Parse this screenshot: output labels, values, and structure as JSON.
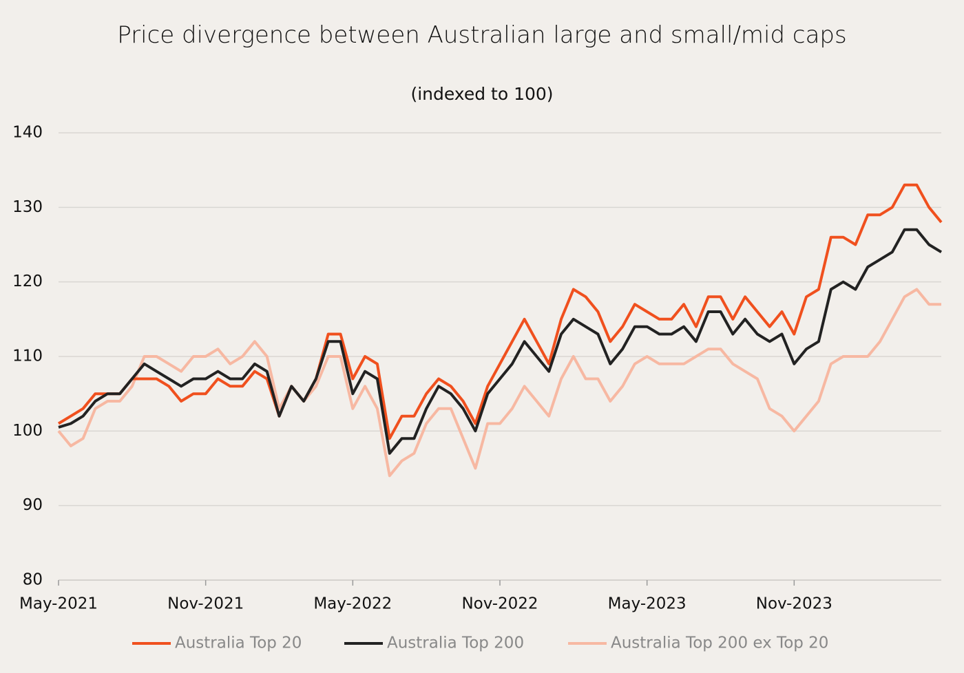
{
  "chart_data": {
    "type": "line",
    "title": "Price divergence between Australian large and small/mid caps",
    "subtitle": "(indexed to 100)",
    "categories": [
      "May-2021",
      null,
      null,
      null,
      null,
      null,
      null,
      null,
      null,
      null,
      null,
      null,
      "Nov-2021",
      null,
      null,
      null,
      null,
      null,
      null,
      null,
      null,
      null,
      null,
      null,
      "May-2022",
      null,
      null,
      null,
      null,
      null,
      null,
      null,
      null,
      null,
      null,
      null,
      "Nov-2022",
      null,
      null,
      null,
      null,
      null,
      null,
      null,
      null,
      null,
      null,
      null,
      "May-2023",
      null,
      null,
      null,
      null,
      null,
      null,
      null,
      null,
      null,
      null,
      null,
      "Nov-2023",
      null,
      null,
      null,
      null,
      null,
      null,
      null,
      null,
      null,
      null,
      null,
      null
    ],
    "series": [
      {
        "name": "Australia Top 20",
        "color": "#f0501e",
        "values": [
          101,
          102,
          103,
          105,
          105,
          105,
          107,
          107,
          107,
          106,
          104,
          105,
          105,
          107,
          106,
          106,
          108,
          107,
          102,
          106,
          104,
          107,
          113,
          113,
          107,
          110,
          109,
          99,
          102,
          102,
          105,
          107,
          106,
          104,
          101,
          106,
          109,
          112,
          115,
          112,
          109,
          115,
          119,
          118,
          116,
          112,
          114,
          117,
          116,
          115,
          115,
          117,
          114,
          118,
          118,
          115,
          118,
          116,
          114,
          116,
          113,
          118,
          119,
          126,
          126,
          125,
          129,
          129,
          130,
          133,
          133,
          130,
          128
        ]
      },
      {
        "name": "Australia Top 200",
        "color": "#222222",
        "values": [
          100.5,
          101,
          102,
          104,
          105,
          105,
          107,
          109,
          108,
          107,
          106,
          107,
          107,
          108,
          107,
          107,
          109,
          108,
          102,
          106,
          104,
          107,
          112,
          112,
          105,
          108,
          107,
          97,
          99,
          99,
          103,
          106,
          105,
          103,
          100,
          105,
          107,
          109,
          112,
          110,
          108,
          113,
          115,
          114,
          113,
          109,
          111,
          114,
          114,
          113,
          113,
          114,
          112,
          116,
          116,
          113,
          115,
          113,
          112,
          113,
          109,
          111,
          112,
          119,
          120,
          119,
          122,
          123,
          124,
          127,
          127,
          125,
          124
        ]
      },
      {
        "name": "Australia Top 200 ex Top 20",
        "color": "#f7b8a2",
        "values": [
          100,
          98,
          99,
          103,
          104,
          104,
          106,
          110,
          110,
          109,
          108,
          110,
          110,
          111,
          109,
          110,
          112,
          110,
          103,
          106,
          104,
          106,
          110,
          110,
          103,
          106,
          103,
          94,
          96,
          97,
          101,
          103,
          103,
          99,
          95,
          101,
          101,
          103,
          106,
          104,
          102,
          107,
          110,
          107,
          107,
          104,
          106,
          109,
          110,
          109,
          109,
          109,
          110,
          111,
          111,
          109,
          108,
          107,
          103,
          102,
          100,
          102,
          104,
          109,
          110,
          110,
          110,
          112,
          115,
          118,
          119,
          117,
          117
        ]
      }
    ],
    "ylim": [
      80,
      140
    ],
    "yticks": [
      80,
      90,
      100,
      110,
      120,
      130,
      140
    ],
    "grid": true,
    "legend": "bottom"
  }
}
